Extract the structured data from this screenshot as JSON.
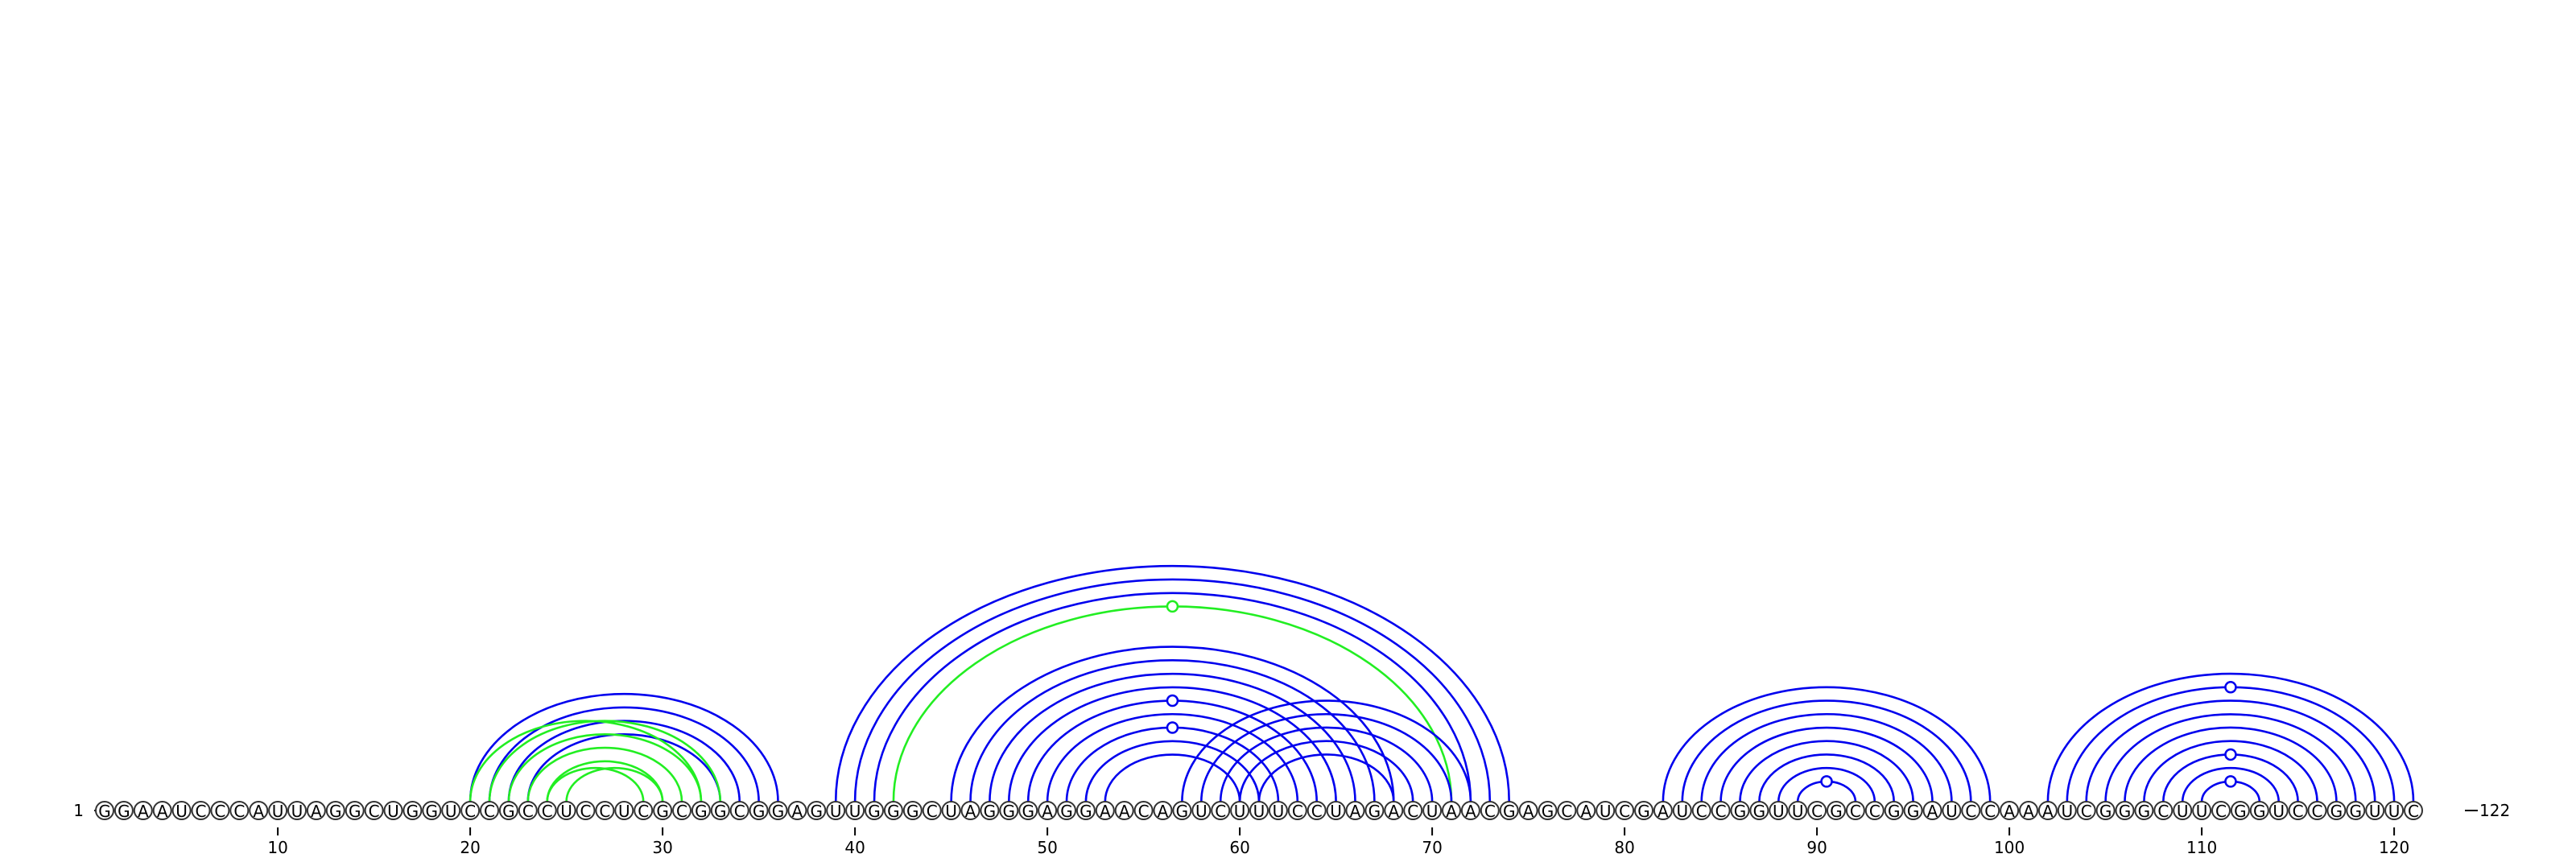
{
  "sequence": "GGAAUCCCAUUAGGCUGGUCCGCCUCCUCGCGGCGGAGUUGGGCUAGGGAGGAACAGUCUUUCCUAGACUAACGAGCAUCGAUCCGGUUCGCCGGAUCCAAAUCGGGCUUCGGUCCGGUUC",
  "start_label": "1",
  "end_label": "122",
  "ticks": [
    10,
    20,
    30,
    40,
    50,
    60,
    70,
    80,
    90,
    100,
    110,
    120
  ],
  "colors": {
    "primary": "#0000ee",
    "alternate": "#22ee22"
  },
  "base_pairs": [
    {
      "i": 20,
      "j": 36,
      "color": "primary"
    },
    {
      "i": 21,
      "j": 35,
      "color": "primary"
    },
    {
      "i": 22,
      "j": 34,
      "color": "primary"
    },
    {
      "i": 23,
      "j": 33,
      "color": "primary"
    },
    {
      "i": 20,
      "j": 32,
      "color": "alternate"
    },
    {
      "i": 21,
      "j": 33,
      "color": "alternate"
    },
    {
      "i": 22,
      "j": 32,
      "color": "alternate"
    },
    {
      "i": 23,
      "j": 31,
      "color": "alternate"
    },
    {
      "i": 24,
      "j": 30,
      "color": "alternate"
    },
    {
      "i": 25,
      "j": 30,
      "color": "alternate"
    },
    {
      "i": 24,
      "j": 29,
      "color": "alternate"
    },
    {
      "i": 39,
      "j": 74,
      "color": "primary"
    },
    {
      "i": 40,
      "j": 73,
      "color": "primary"
    },
    {
      "i": 41,
      "j": 72,
      "color": "primary"
    },
    {
      "i": 42,
      "j": 71,
      "color": "alternate",
      "loop": true
    },
    {
      "i": 45,
      "j": 68,
      "color": "primary"
    },
    {
      "i": 46,
      "j": 67,
      "color": "primary"
    },
    {
      "i": 47,
      "j": 66,
      "color": "primary"
    },
    {
      "i": 48,
      "j": 65,
      "color": "primary"
    },
    {
      "i": 49,
      "j": 64,
      "color": "primary",
      "loop": true
    },
    {
      "i": 50,
      "j": 63,
      "color": "primary"
    },
    {
      "i": 51,
      "j": 62,
      "color": "primary",
      "loop": true
    },
    {
      "i": 52,
      "j": 61,
      "color": "primary"
    },
    {
      "i": 53,
      "j": 60,
      "color": "primary"
    },
    {
      "i": 57,
      "j": 72,
      "color": "primary"
    },
    {
      "i": 58,
      "j": 71,
      "color": "primary"
    },
    {
      "i": 59,
      "j": 70,
      "color": "primary"
    },
    {
      "i": 60,
      "j": 69,
      "color": "primary"
    },
    {
      "i": 61,
      "j": 68,
      "color": "primary"
    },
    {
      "i": 82,
      "j": 99,
      "color": "primary"
    },
    {
      "i": 83,
      "j": 98,
      "color": "primary"
    },
    {
      "i": 84,
      "j": 97,
      "color": "primary"
    },
    {
      "i": 85,
      "j": 96,
      "color": "primary"
    },
    {
      "i": 86,
      "j": 95,
      "color": "primary"
    },
    {
      "i": 87,
      "j": 94,
      "color": "primary"
    },
    {
      "i": 88,
      "j": 93,
      "color": "primary"
    },
    {
      "i": 89,
      "j": 92,
      "color": "primary",
      "loop": true
    },
    {
      "i": 102,
      "j": 121,
      "color": "primary"
    },
    {
      "i": 103,
      "j": 120,
      "color": "primary",
      "loop": true
    },
    {
      "i": 104,
      "j": 119,
      "color": "primary"
    },
    {
      "i": 105,
      "j": 118,
      "color": "primary"
    },
    {
      "i": 106,
      "j": 117,
      "color": "primary"
    },
    {
      "i": 107,
      "j": 116,
      "color": "primary"
    },
    {
      "i": 108,
      "j": 115,
      "color": "primary",
      "loop": true
    },
    {
      "i": 109,
      "j": 114,
      "color": "primary"
    },
    {
      "i": 110,
      "j": 113,
      "color": "primary",
      "loop": true
    }
  ]
}
